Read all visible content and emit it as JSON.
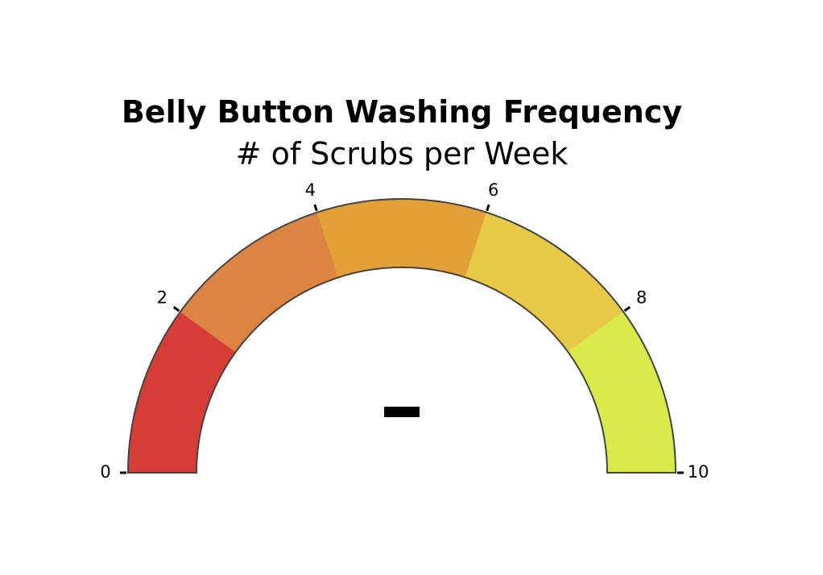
{
  "chart_data": {
    "type": "gauge",
    "title": "Belly Button Washing Frequency",
    "subtitle": "# of Scrubs per Week",
    "range": [
      0,
      10
    ],
    "value_display": "—",
    "ticks": [
      {
        "value": 0,
        "label": "0"
      },
      {
        "value": 2,
        "label": "2"
      },
      {
        "value": 4,
        "label": "4"
      },
      {
        "value": 6,
        "label": "6"
      },
      {
        "value": 8,
        "label": "8"
      },
      {
        "value": 10,
        "label": "10"
      }
    ],
    "bands": [
      {
        "from": 0,
        "to": 2,
        "color": "#d73d37"
      },
      {
        "from": 2,
        "to": 4,
        "color": "#dc8542"
      },
      {
        "from": 4,
        "to": 6,
        "color": "#e2a037"
      },
      {
        "from": 6,
        "to": 8,
        "color": "#e8c945"
      },
      {
        "from": 8,
        "to": 10,
        "color": "#d9ea4b"
      }
    ],
    "outline_color": "#444444"
  }
}
